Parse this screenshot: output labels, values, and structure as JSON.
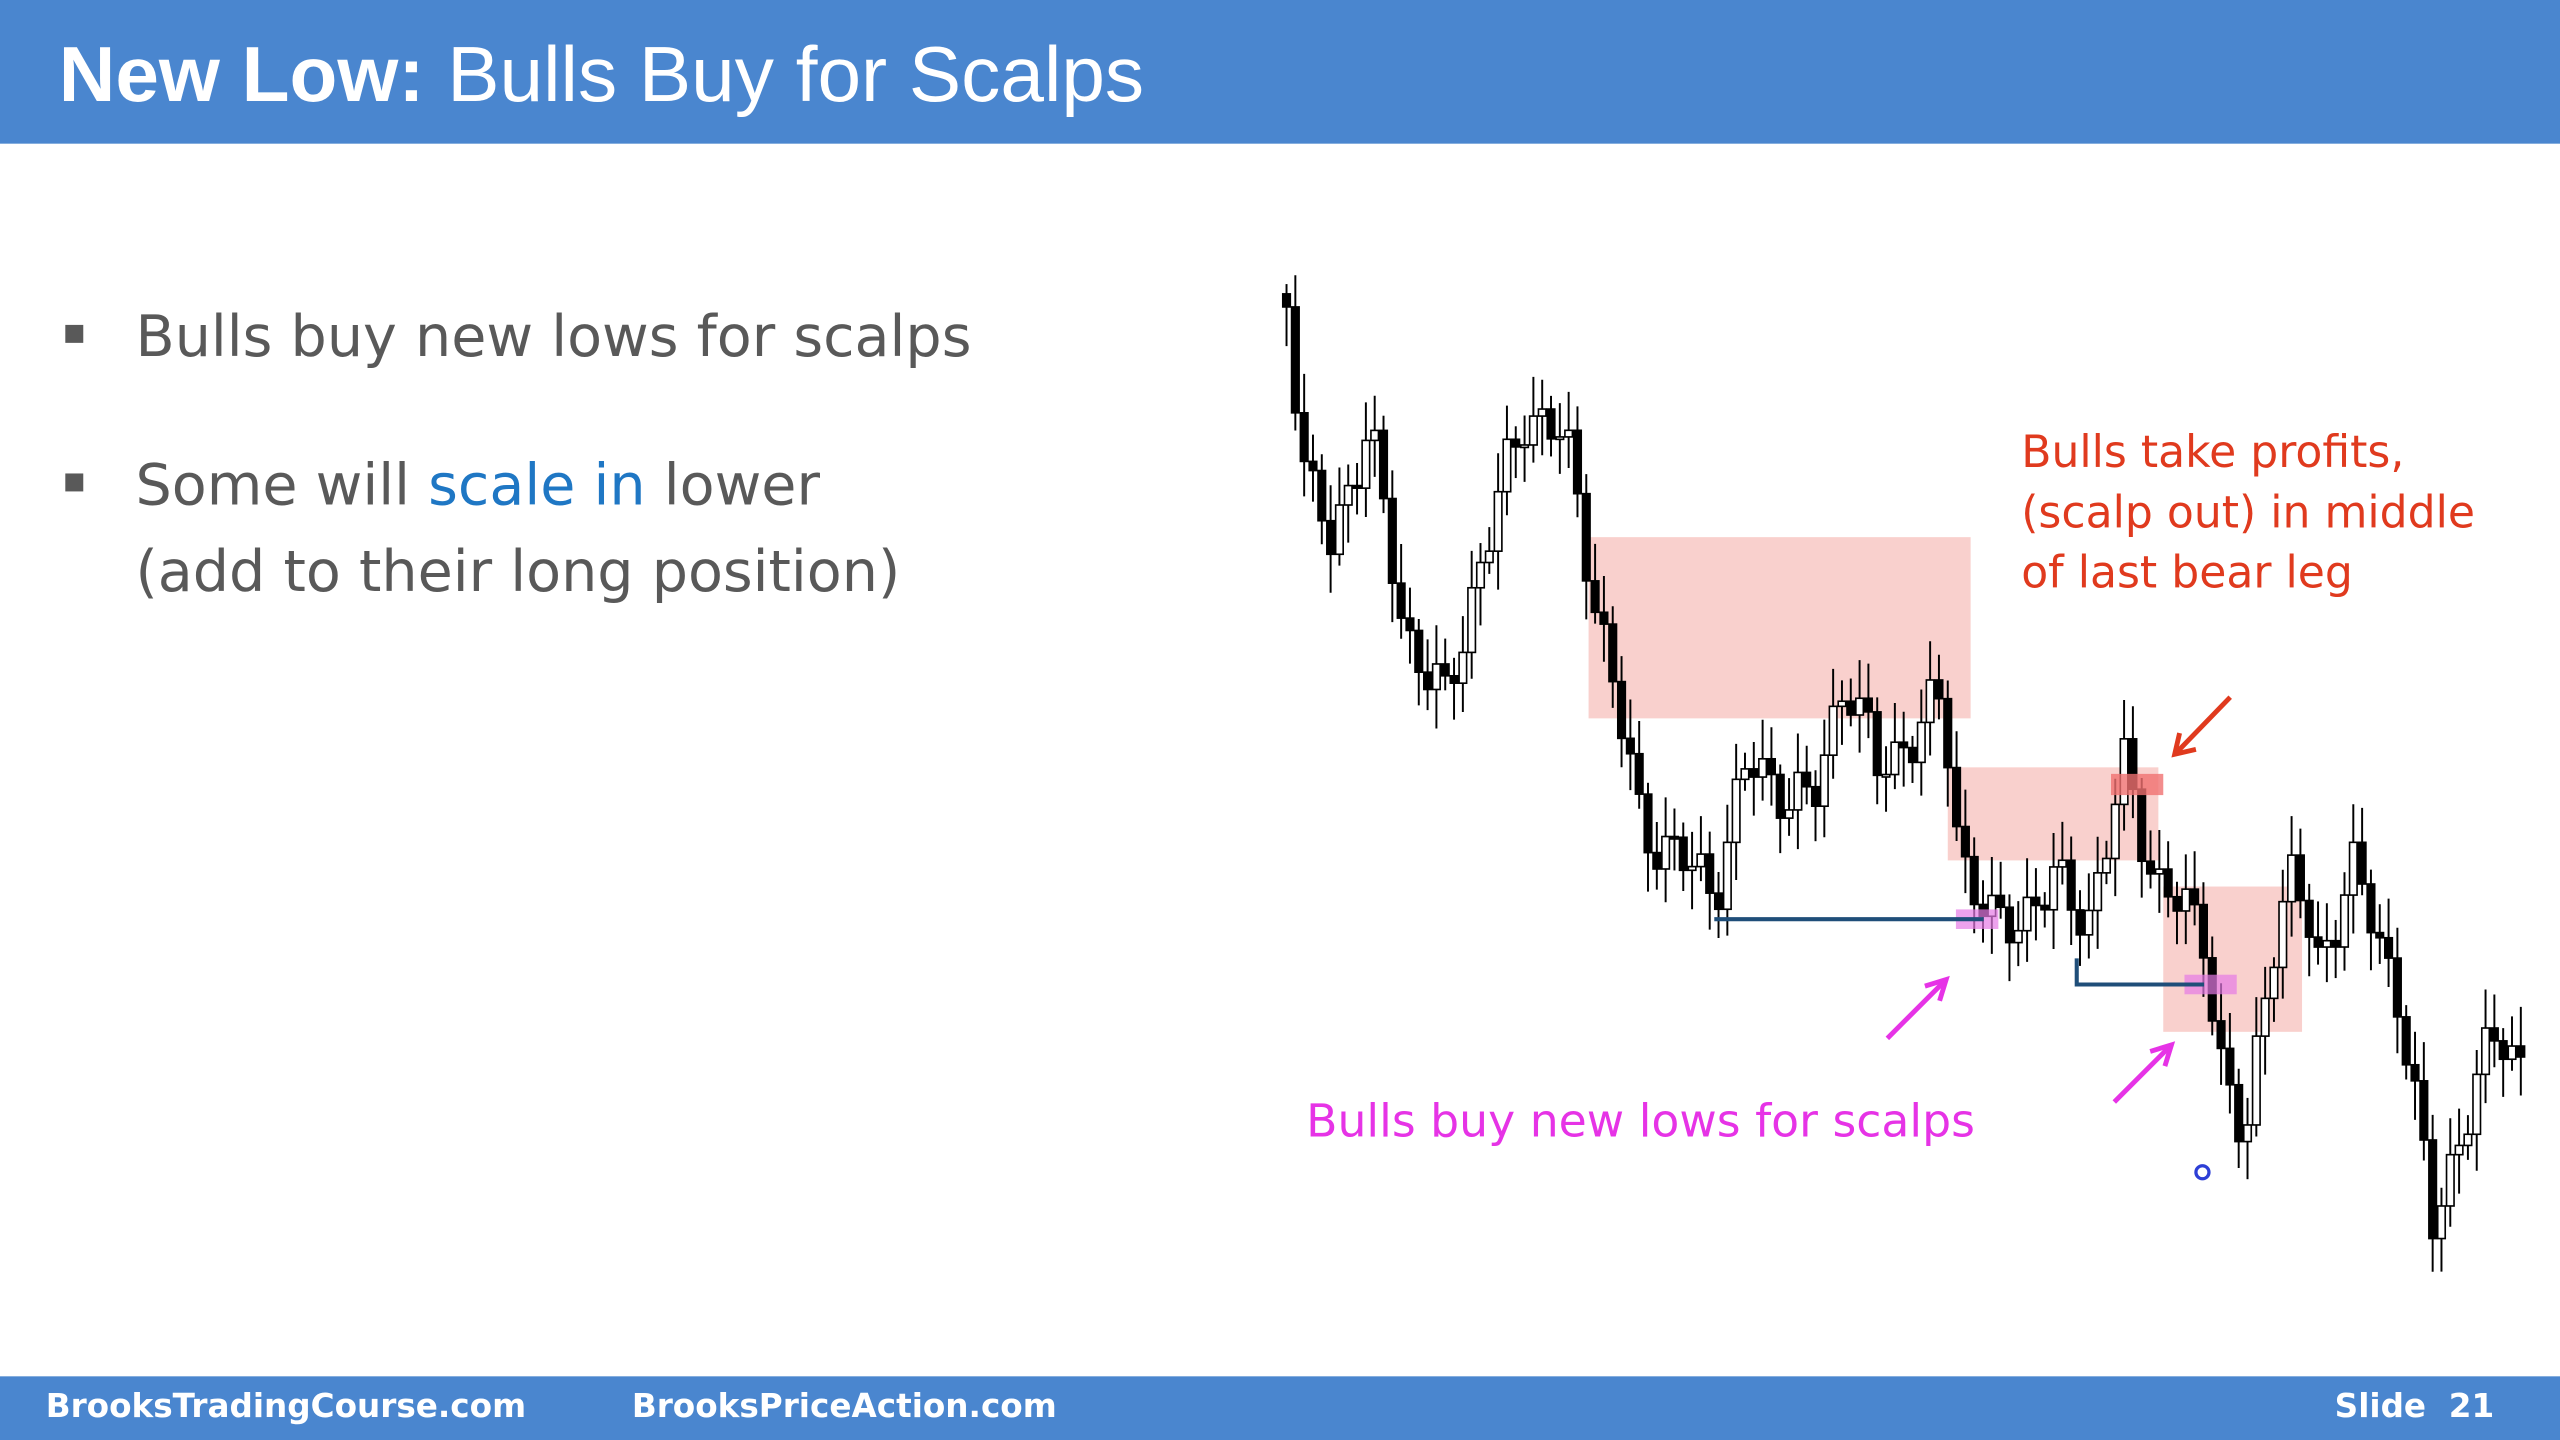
{
  "header": {
    "title_bold": "New Low:",
    "title_rest": "Bulls Buy for Scalps"
  },
  "bullets": [
    {
      "text": "Bulls buy new lows for scalps"
    },
    {
      "parts": [
        "Some will ",
        "scale in",
        " lower"
      ],
      "line2": "(add to their long position)"
    }
  ],
  "annotations": {
    "take_profits": [
      "Bulls take profits,",
      "(scalp out) in middle",
      "of last bear leg"
    ],
    "buy_new_lows": "Bulls buy new lows for scalps"
  },
  "footer": {
    "left": "BrooksTradingCourse.com",
    "middle": "BrooksPriceAction.com",
    "right": "Slide  21"
  }
}
